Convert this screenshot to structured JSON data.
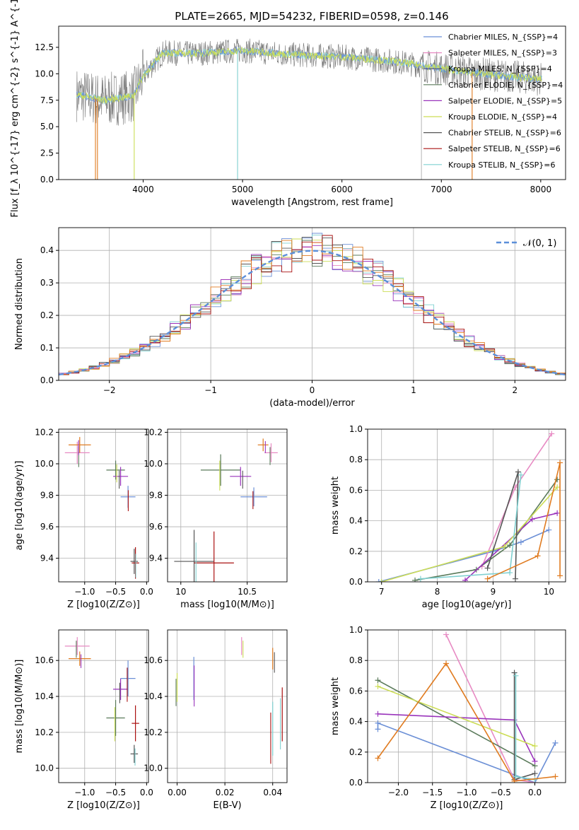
{
  "title": "PLATE=2665, MJD=54232, FIBERID=0598, z=0.146",
  "colors": [
    "#6b8fd6",
    "#e78ac3",
    "#4a4a8a",
    "#5a7a5a",
    "#9933bb",
    "#ccdd55",
    "#555555",
    "#aa1111",
    "#7fd0d0"
  ],
  "orange": "#e07b20",
  "legend": [
    "Chabrier MILES, N_{SSP}=4",
    "Salpeter MILES, N_{SSP}=3",
    "Kroupa MILES, N_{SSP}=4",
    "Chabrier ELODIE, N_{SSP}=4",
    "Salpeter ELODIE, N_{SSP}=5",
    "Kroupa ELODIE, N_{SSP}=4",
    "Chabrier STELIB, N_{SSP}=6",
    "Salpeter STELIB, N_{SSP}=6",
    "Kroupa STELIB, N_{SSP}=6"
  ],
  "hist_legend": "𝒩(0, 1)",
  "chart_data": [
    {
      "type": "line",
      "id": "spectrum",
      "title": "PLATE=2665, MJD=54232, FIBERID=0598, z=0.146",
      "xlabel": "wavelength [Angstrom, rest frame]",
      "ylabel": "Flux [f_λ 10^{-17} erg cm^{-2} s^{-1} A^{-1}]",
      "xlim": [
        3150,
        8250
      ],
      "ylim": [
        0,
        14.5
      ],
      "xticks": [
        4000,
        5000,
        6000,
        7000,
        8000
      ],
      "yticks": [
        0.0,
        2.5,
        5.0,
        7.5,
        10.0,
        12.5
      ],
      "continuum": [
        [
          3300,
          8.1
        ],
        [
          3600,
          7.5
        ],
        [
          3900,
          7.9
        ],
        [
          4000,
          9.8
        ],
        [
          4200,
          12.0
        ],
        [
          4500,
          11.9
        ],
        [
          5000,
          12.2
        ],
        [
          5500,
          11.8
        ],
        [
          6000,
          11.6
        ],
        [
          6500,
          11.2
        ],
        [
          7000,
          10.5
        ],
        [
          7500,
          9.9
        ],
        [
          8000,
          9.5
        ]
      ]
    },
    {
      "type": "bar",
      "id": "residual_histogram",
      "xlabel": "(data-model)/error",
      "ylabel": "Normed distribution",
      "xlim": [
        -2.5,
        2.5
      ],
      "ylim": [
        0,
        0.47
      ],
      "xticks": [
        -2,
        -1,
        0,
        1,
        2
      ],
      "yticks": [
        0.0,
        0.1,
        0.2,
        0.3,
        0.4
      ]
    },
    {
      "type": "scatter",
      "id": "age_vs_Z",
      "xlabel": "Z [log10(Z/Z⊙)]",
      "ylabel": "age  [log10(age/yr)]",
      "xlim": [
        -1.42,
        0.03
      ],
      "ylim": [
        9.25,
        10.22
      ],
      "xticks": [
        -1.0,
        -0.5,
        0.0
      ],
      "xticklabels": [
        "−1.0",
        "−0.5",
        "0.0"
      ],
      "yticks": [
        9.4,
        9.6,
        9.8,
        10.0,
        10.2
      ],
      "points": [
        [
          -1.12,
          10.07,
          0.2,
          0.07
        ],
        [
          -1.08,
          10.12,
          0.18,
          0.05
        ],
        [
          -0.5,
          9.96,
          0.15,
          0.06
        ],
        [
          -0.42,
          9.92,
          0.12,
          0.06
        ],
        [
          -0.3,
          9.79,
          0.12,
          0.07
        ],
        [
          -0.2,
          9.38,
          0.06,
          0.08
        ],
        [
          -0.18,
          9.37,
          0.06,
          0.1
        ]
      ]
    },
    {
      "type": "scatter",
      "id": "age_vs_mass",
      "xlabel": "mass [log10(M/M⊙)]",
      "ylabel": "",
      "xlim": [
        9.9,
        10.8
      ],
      "ylim": [
        9.25,
        10.22
      ],
      "xticks": [
        10.0,
        10.5
      ],
      "yticks": [
        9.4,
        9.6,
        9.8,
        10.0,
        10.2
      ],
      "points": [
        [
          10.68,
          10.07,
          0.05,
          0.06
        ],
        [
          10.62,
          10.12,
          0.04,
          0.04
        ],
        [
          10.3,
          9.96,
          0.15,
          0.1
        ],
        [
          10.45,
          9.92,
          0.08,
          0.06
        ],
        [
          10.55,
          9.79,
          0.1,
          0.06
        ],
        [
          10.1,
          9.38,
          0.15,
          0.2
        ],
        [
          10.25,
          9.37,
          0.15,
          0.2
        ]
      ]
    },
    {
      "type": "line",
      "id": "massweight_vs_age",
      "xlabel": "age  [log10(age/yr)]",
      "ylabel": "mass weight",
      "xlim": [
        6.75,
        10.3
      ],
      "ylim": [
        0,
        1.0
      ],
      "xticks": [
        7,
        8,
        9,
        10
      ],
      "yticks": [
        0.0,
        0.2,
        0.4,
        0.6,
        0.8,
        1.0
      ]
    },
    {
      "type": "scatter",
      "id": "mass_vs_Z",
      "xlabel": "Z [log10(Z/Z⊙)]",
      "ylabel": "mass [log10(M/M⊙)]",
      "xlim": [
        -1.42,
        0.03
      ],
      "ylim": [
        9.92,
        10.77
      ],
      "xticks": [
        -1.0,
        -0.5,
        0.0
      ],
      "xticklabels": [
        "−1.0",
        "−0.5",
        "0.0"
      ],
      "yticks": [
        10.0,
        10.2,
        10.4,
        10.6
      ],
      "points": [
        [
          -1.12,
          10.68,
          0.2,
          0.05
        ],
        [
          -1.08,
          10.61,
          0.18,
          0.04
        ],
        [
          -0.5,
          10.28,
          0.15,
          0.1
        ],
        [
          -0.42,
          10.44,
          0.12,
          0.06
        ],
        [
          -0.3,
          10.5,
          0.12,
          0.1
        ],
        [
          -0.2,
          10.08,
          0.06,
          0.05
        ],
        [
          -0.18,
          10.25,
          0.06,
          0.1
        ]
      ]
    },
    {
      "type": "scatter",
      "id": "mass_vs_EBV",
      "xlabel": "E(B-V)",
      "ylabel": "",
      "xlim": [
        -0.004,
        0.046
      ],
      "ylim": [
        9.92,
        10.77
      ],
      "xticks": [
        0.0,
        0.02,
        0.04
      ],
      "xticklabels": [
        "0.00",
        "0.02",
        "0.04"
      ],
      "yticks": [
        10.0,
        10.2,
        10.4,
        10.6
      ],
      "points": [
        [
          0.0,
          10.45,
          0,
          0.08
        ],
        [
          0.007,
          10.5,
          0,
          0.12
        ],
        [
          0.027,
          10.68,
          0,
          0.05
        ],
        [
          0.04,
          10.61,
          0,
          0.06
        ],
        [
          0.04,
          10.22,
          0,
          0.15
        ],
        [
          0.044,
          10.3,
          0,
          0.15
        ]
      ]
    },
    {
      "type": "line",
      "id": "massweight_vs_Z",
      "xlabel": "Z [log10(Z/Z⊙)]",
      "ylabel": "mass weight",
      "xlim": [
        -2.45,
        0.45
      ],
      "ylim": [
        0,
        1.0
      ],
      "xticks": [
        -2.0,
        -1.5,
        -1.0,
        -0.5,
        0.0
      ],
      "xticklabels": [
        "−2.0",
        "−1.5",
        "−1.0",
        "−0.5",
        "0.0"
      ],
      "yticks": [
        0.0,
        0.2,
        0.4,
        0.6,
        0.8,
        1.0
      ]
    }
  ]
}
